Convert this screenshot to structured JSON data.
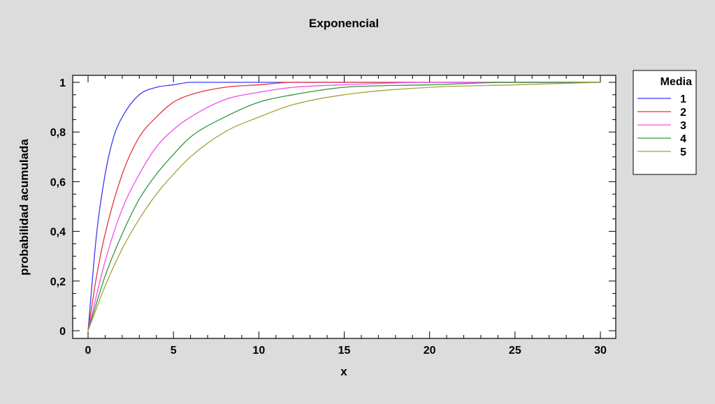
{
  "chart_data": {
    "type": "line",
    "title": "Exponencial",
    "xlabel": "x",
    "ylabel": "probabilidad acumulada",
    "xlim": [
      0,
      30
    ],
    "ylim": [
      0,
      1
    ],
    "x_ticks": [
      0,
      5,
      10,
      15,
      20,
      25,
      30
    ],
    "x_tick_labels": [
      "0",
      "5",
      "10",
      "15",
      "20",
      "25",
      "30"
    ],
    "y_ticks": [
      0,
      0.2,
      0.4,
      0.6,
      0.8,
      1
    ],
    "y_tick_labels": [
      "0",
      "0,2",
      "0,4",
      "0,6",
      "0,8",
      "1"
    ],
    "grid": false,
    "legend": {
      "title": "Media",
      "placement": "right-outside-top"
    },
    "series": [
      {
        "name": "1",
        "color": "#3a3af0",
        "x": [
          0,
          0.5,
          1,
          1.5,
          2,
          3,
          4,
          5,
          6,
          8,
          10,
          15,
          20,
          25,
          30
        ],
        "y": [
          0,
          0.39,
          0.63,
          0.78,
          0.86,
          0.95,
          0.98,
          0.99,
          1.0,
          1.0,
          1.0,
          1.0,
          1.0,
          1.0,
          1.0
        ]
      },
      {
        "name": "2",
        "color": "#e8323c",
        "x": [
          0,
          0.5,
          1,
          2,
          3,
          4,
          5,
          6,
          8,
          10,
          12,
          15,
          20,
          25,
          30
        ],
        "y": [
          0,
          0.22,
          0.39,
          0.63,
          0.78,
          0.86,
          0.92,
          0.95,
          0.98,
          0.99,
          1.0,
          1.0,
          1.0,
          1.0,
          1.0
        ]
      },
      {
        "name": "3",
        "color": "#f050f0",
        "x": [
          0,
          1,
          2,
          3,
          4,
          5,
          6,
          8,
          10,
          12,
          15,
          20,
          25,
          30
        ],
        "y": [
          0,
          0.28,
          0.49,
          0.63,
          0.74,
          0.81,
          0.86,
          0.93,
          0.96,
          0.98,
          0.99,
          1.0,
          1.0,
          1.0
        ]
      },
      {
        "name": "4",
        "color": "#2e9a3a",
        "x": [
          0,
          1,
          2,
          3,
          4,
          5,
          6,
          8,
          10,
          12,
          15,
          20,
          25,
          30
        ],
        "y": [
          0,
          0.22,
          0.39,
          0.53,
          0.63,
          0.71,
          0.78,
          0.86,
          0.92,
          0.95,
          0.98,
          0.99,
          1.0,
          1.0
        ]
      },
      {
        "name": "5",
        "color": "#a8a03a",
        "x": [
          0,
          1,
          2,
          3,
          4,
          5,
          6,
          8,
          10,
          12,
          15,
          20,
          25,
          30
        ],
        "y": [
          0,
          0.18,
          0.33,
          0.45,
          0.55,
          0.63,
          0.7,
          0.8,
          0.86,
          0.91,
          0.95,
          0.98,
          0.99,
          1.0
        ]
      }
    ]
  }
}
